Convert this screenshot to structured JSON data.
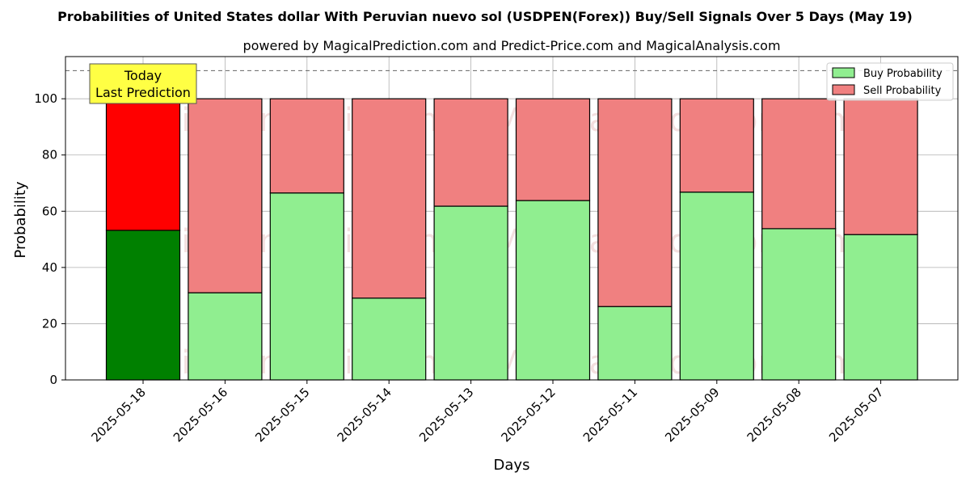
{
  "chart_data": {
    "type": "bar",
    "stacked": true,
    "title": "Probabilities of United States dollar With Peruvian nuevo sol (USDPEN(Forex)) Buy/Sell Signals Over 5 Days (May 19)",
    "subtitle": "powered by MagicalPrediction.com and Predict-Price.com and MagicalAnalysis.com",
    "xlabel": "Days",
    "ylabel": "Probability",
    "ylim": [
      0,
      115
    ],
    "yticks": [
      0,
      20,
      40,
      60,
      80,
      100
    ],
    "grid": true,
    "legend_placement": "top-right",
    "reference_line": 110,
    "categories": [
      "2025-05-18",
      "2025-05-16",
      "2025-05-15",
      "2025-05-14",
      "2025-05-13",
      "2025-05-12",
      "2025-05-11",
      "2025-05-09",
      "2025-05-08",
      "2025-05-07"
    ],
    "series": [
      {
        "name": "Buy Probability",
        "color": "#90ee90",
        "highlight_color": "#008000",
        "values": [
          53.2,
          31.0,
          66.5,
          29.1,
          61.8,
          63.8,
          26.1,
          66.8,
          53.8,
          51.7
        ]
      },
      {
        "name": "Sell Probability",
        "color": "#f08080",
        "highlight_color": "#ff0000",
        "values": [
          46.8,
          69.0,
          33.5,
          70.9,
          38.2,
          36.2,
          73.9,
          33.2,
          46.2,
          48.3
        ]
      }
    ],
    "annotation": {
      "lines": [
        "Today",
        "Last Prediction"
      ],
      "category_index": 0,
      "bg_color": "#ffff44"
    },
    "watermarks": [
      "MagicalAnalysis.com",
      "MagicalPrediction.com"
    ]
  }
}
